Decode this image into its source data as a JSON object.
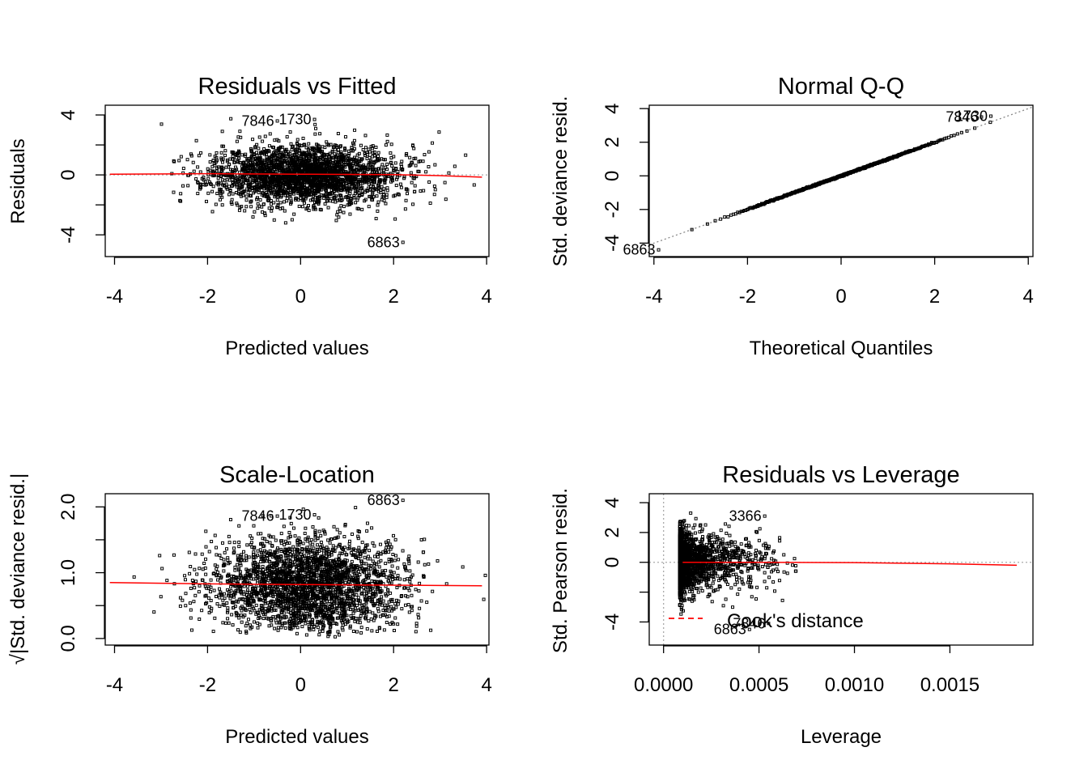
{
  "chart_data": [
    {
      "type": "scatter",
      "title": "Residuals vs Fitted",
      "xlabel": "Predicted values",
      "ylabel": "Residuals",
      "xlim": [
        -4.2,
        4.05
      ],
      "ylim": [
        -5.45,
        4.65
      ],
      "xticks": [
        -4,
        -2,
        0,
        2,
        4
      ],
      "yticks": [
        -4,
        0,
        4
      ],
      "reference_line": {
        "y": 0,
        "style": "dotted",
        "color": "#aaaaaa"
      },
      "smooth_line": {
        "color": "#ff0000",
        "x": [
          -4.1,
          -2,
          0,
          2,
          3,
          3.9
        ],
        "y": [
          0.05,
          0.08,
          0.05,
          0.02,
          -0.05,
          -0.15
        ]
      },
      "point_cloud": {
        "n": 2600,
        "x_mean": 0.1,
        "x_sd": 1.0,
        "y_sd": 1.0,
        "seed": 11
      },
      "labeled_points": [
        {
          "label": "7846",
          "x": -0.5,
          "y": 3.6
        },
        {
          "label": "1730",
          "x": 0.3,
          "y": 3.7
        },
        {
          "label": "6863",
          "x": 2.2,
          "y": -4.5
        }
      ]
    },
    {
      "type": "scatter",
      "title": "Normal Q-Q",
      "xlabel": "Theoretical Quantiles",
      "ylabel": "Std. deviance resid.",
      "xlim": [
        -4.1,
        4.1
      ],
      "ylim": [
        -4.8,
        4.2
      ],
      "xticks": [
        -4,
        -2,
        0,
        2,
        4
      ],
      "yticks": [
        -4,
        -2,
        0,
        2,
        4
      ],
      "reference_line": {
        "slope": 1,
        "intercept": 0,
        "style": "dotted",
        "color": "#888888"
      },
      "point_cloud": {
        "n": 700,
        "seed": 23
      },
      "labeled_points": [
        {
          "label": "7846",
          "x": 3.0,
          "y": 3.5
        },
        {
          "label": "1730",
          "x": 3.2,
          "y": 3.55
        },
        {
          "label": "6863",
          "x": -3.9,
          "y": -4.4
        }
      ]
    },
    {
      "type": "scatter",
      "title": "Scale-Location",
      "xlabel": "Predicted values",
      "ylabel": "√|Std. deviance resid.|",
      "xlim": [
        -4.2,
        4.05
      ],
      "ylim": [
        -0.1,
        2.2
      ],
      "xticks": [
        -4,
        -2,
        0,
        2,
        4
      ],
      "yticks": [
        0.0,
        1.0,
        2.0
      ],
      "ytick_labels": [
        "0.0",
        "1.0",
        "2.0"
      ],
      "smooth_line": {
        "color": "#ff0000",
        "x": [
          -4.1,
          -2,
          0,
          2,
          3.9
        ],
        "y": [
          0.85,
          0.83,
          0.82,
          0.81,
          0.8
        ]
      },
      "point_cloud": {
        "n": 2600,
        "x_mean": 0.1,
        "x_sd": 1.0,
        "seed": 37
      },
      "labeled_points": [
        {
          "label": "7846",
          "x": -0.5,
          "y": 1.86
        },
        {
          "label": "1730",
          "x": 0.3,
          "y": 1.88
        },
        {
          "label": "6863",
          "x": 2.2,
          "y": 2.1
        }
      ]
    },
    {
      "type": "scatter",
      "title": "Residuals vs Leverage",
      "xlabel": "Leverage",
      "ylabel": "Std. Pearson resid.",
      "xlim": [
        -7.5e-05,
        0.001935
      ],
      "ylim": [
        -5.55,
        4.6
      ],
      "xticks": [
        0.0,
        0.0005,
        0.001,
        0.0015
      ],
      "xtick_labels": [
        "0.0000",
        "0.0005",
        "0.0010",
        "0.0015"
      ],
      "yticks": [
        -4,
        0,
        2,
        4
      ],
      "reference_line": {
        "y": 0,
        "x": 0,
        "style": "dotted",
        "color": "#aaaaaa"
      },
      "smooth_line": {
        "color": "#ff0000",
        "x": [
          0.0001,
          0.0005,
          0.001,
          0.0015,
          0.00185
        ],
        "y": [
          0.0,
          0.0,
          -0.02,
          -0.1,
          -0.2
        ]
      },
      "cooks_distance_legend": {
        "label": "Cook's distance",
        "color": "#ff0000"
      },
      "point_cloud": {
        "n": 2200,
        "lev_min": 8.5e-05,
        "lev_scale": 0.00011,
        "seed": 53
      },
      "labeled_points": [
        {
          "label": "3366",
          "x": 0.00053,
          "y": 3.1
        },
        {
          "label": "6863",
          "x": 0.00045,
          "y": -4.5
        },
        {
          "label": "7846",
          "x": 0.00055,
          "y": -4.1
        }
      ]
    }
  ]
}
